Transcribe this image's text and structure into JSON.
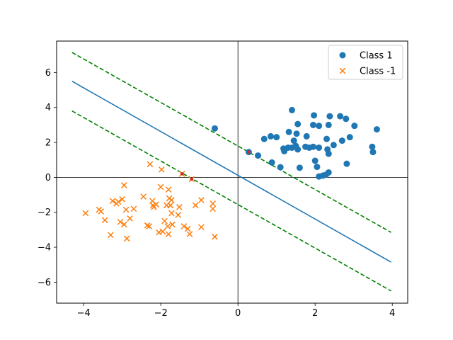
{
  "chart_data": {
    "type": "scatter",
    "title": "",
    "xlabel": "",
    "ylabel": "",
    "xlim": [
      -4.7,
      4.4
    ],
    "ylim": [
      -7.2,
      7.8
    ],
    "xticks": [
      -4,
      -2,
      0,
      2,
      4
    ],
    "yticks": [
      -6,
      -4,
      -2,
      0,
      2,
      4,
      6
    ],
    "grid": false,
    "legend_position": "top-right",
    "axis_lines": {
      "x0": 0,
      "y0": 0,
      "color": "#000000"
    },
    "series": [
      {
        "name": "Class 1",
        "marker": "circle",
        "color": "#1f77b4",
        "points": [
          [
            -0.6,
            2.8
          ],
          [
            0.28,
            1.45
          ],
          [
            0.52,
            1.25
          ],
          [
            0.68,
            2.2
          ],
          [
            0.85,
            2.35
          ],
          [
            0.88,
            0.85
          ],
          [
            1.0,
            2.3
          ],
          [
            1.1,
            0.58
          ],
          [
            1.18,
            1.65
          ],
          [
            1.2,
            1.5
          ],
          [
            1.3,
            1.7
          ],
          [
            1.32,
            2.6
          ],
          [
            1.4,
            1.7
          ],
          [
            1.45,
            2.1
          ],
          [
            1.4,
            3.85
          ],
          [
            1.5,
            1.8
          ],
          [
            1.52,
            2.5
          ],
          [
            1.55,
            3.05
          ],
          [
            1.55,
            1.6
          ],
          [
            1.6,
            0.55
          ],
          [
            1.75,
            1.75
          ],
          [
            1.78,
            2.35
          ],
          [
            1.85,
            1.7
          ],
          [
            1.95,
            1.75
          ],
          [
            1.95,
            3.0
          ],
          [
            1.97,
            3.55
          ],
          [
            2.0,
            0.95
          ],
          [
            2.05,
            0.6
          ],
          [
            2.1,
            1.7
          ],
          [
            2.1,
            2.95
          ],
          [
            2.1,
            0.05
          ],
          [
            2.2,
            0.1
          ],
          [
            2.28,
            0.15
          ],
          [
            2.3,
            2.2
          ],
          [
            2.32,
            1.6
          ],
          [
            2.35,
            0.28
          ],
          [
            2.35,
            1.35
          ],
          [
            2.35,
            3.0
          ],
          [
            2.38,
            3.5
          ],
          [
            2.48,
            1.85
          ],
          [
            2.65,
            3.5
          ],
          [
            2.7,
            2.1
          ],
          [
            2.8,
            3.35
          ],
          [
            2.82,
            0.78
          ],
          [
            2.9,
            2.3
          ],
          [
            3.02,
            2.95
          ],
          [
            3.48,
            1.75
          ],
          [
            3.5,
            1.45
          ],
          [
            3.6,
            2.75
          ]
        ]
      },
      {
        "name": "Class -1",
        "marker": "x",
        "color": "#ff7f0e",
        "points": [
          [
            -3.95,
            -2.05
          ],
          [
            -3.6,
            -1.85
          ],
          [
            -3.55,
            -1.95
          ],
          [
            -3.45,
            -2.45
          ],
          [
            -3.3,
            -3.3
          ],
          [
            -3.25,
            -1.35
          ],
          [
            -3.15,
            -1.5
          ],
          [
            -3.1,
            -1.4
          ],
          [
            -3.05,
            -2.55
          ],
          [
            -3.0,
            -1.25
          ],
          [
            -2.95,
            -0.45
          ],
          [
            -2.95,
            -2.7
          ],
          [
            -2.9,
            -1.85
          ],
          [
            -2.88,
            -3.5
          ],
          [
            -2.8,
            -2.35
          ],
          [
            -2.7,
            -1.8
          ],
          [
            -2.45,
            -1.1
          ],
          [
            -2.35,
            -2.75
          ],
          [
            -2.3,
            -2.8
          ],
          [
            -2.28,
            0.75
          ],
          [
            -2.22,
            -1.35
          ],
          [
            -2.2,
            -1.6
          ],
          [
            -2.18,
            -1.7
          ],
          [
            -2.12,
            -1.55
          ],
          [
            -2.05,
            -3.15
          ],
          [
            -2.0,
            -0.55
          ],
          [
            -1.98,
            0.45
          ],
          [
            -1.95,
            -3.1
          ],
          [
            -1.9,
            -2.5
          ],
          [
            -1.85,
            -1.6
          ],
          [
            -1.82,
            -2.8
          ],
          [
            -1.8,
            -0.7
          ],
          [
            -1.8,
            -3.25
          ],
          [
            -1.78,
            -1.2
          ],
          [
            -1.75,
            -1.6
          ],
          [
            -1.72,
            -2.05
          ],
          [
            -1.72,
            -1.3
          ],
          [
            -1.7,
            -2.7
          ],
          [
            -1.55,
            -2.15
          ],
          [
            -1.52,
            -1.7
          ],
          [
            -1.45,
            0.2
          ],
          [
            -1.4,
            -2.8
          ],
          [
            -1.3,
            -2.95
          ],
          [
            -1.25,
            -3.25
          ],
          [
            -1.2,
            -0.1
          ],
          [
            -1.1,
            -1.6
          ],
          [
            -0.95,
            -2.85
          ],
          [
            -0.95,
            -1.3
          ],
          [
            -0.65,
            -1.5
          ],
          [
            -0.65,
            -1.8
          ],
          [
            -0.6,
            -3.4
          ]
        ]
      }
    ],
    "lines": [
      {
        "role": "decision-boundary",
        "style": "solid",
        "color": "#1f77b4",
        "points": [
          [
            -4.3,
            5.5
          ],
          [
            3.97,
            -4.85
          ]
        ]
      },
      {
        "role": "margin",
        "style": "dashed",
        "color": "#008000",
        "points": [
          [
            -4.3,
            7.15
          ],
          [
            3.97,
            -3.15
          ]
        ]
      },
      {
        "role": "margin",
        "style": "dashed",
        "color": "#008000",
        "points": [
          [
            -4.3,
            3.8
          ],
          [
            3.97,
            -6.5
          ]
        ]
      }
    ],
    "support_vectors": [
      {
        "point": [
          0.28,
          1.45
        ],
        "color": "#d62728"
      },
      {
        "point": [
          -1.45,
          0.2
        ],
        "color": "#d62728"
      },
      {
        "point": [
          -1.2,
          -0.1
        ],
        "color": "#d62728"
      }
    ]
  }
}
